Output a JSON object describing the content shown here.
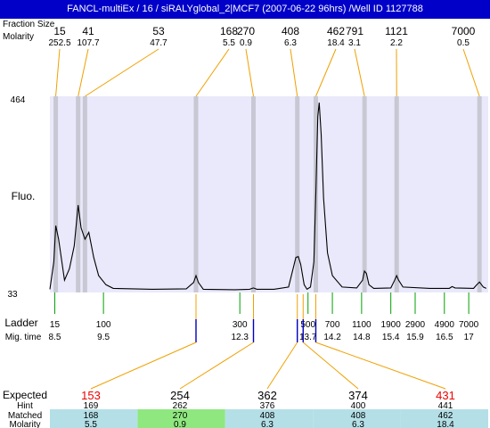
{
  "header": {
    "title": "FANCL-multiEx / 16 / siRALYglobal_2|MCF7 (2007-06-22 96hrs) /Well ID 1127788"
  },
  "labels": {
    "fraction_size": "Fraction Size",
    "molarity": "Molarity",
    "fluo": "Fluo.",
    "ladder": "Ladder",
    "mig_time": "Mig. time",
    "expected": "Expected",
    "hint": "Hint",
    "matched": "Matched",
    "molarity_bottom": "Molarity"
  },
  "fractions": [
    {
      "size": "15",
      "molarity": "252.5"
    },
    {
      "size": "41",
      "molarity": "107.7"
    },
    {
      "size": "53",
      "molarity": "47.7"
    },
    {
      "size": "168",
      "molarity": "5.5"
    },
    {
      "size": "270",
      "molarity": "0.9"
    },
    {
      "size": "408",
      "molarity": "6.3"
    },
    {
      "size": "462",
      "molarity": "18.4"
    },
    {
      "size": "791",
      "molarity": "3.1"
    },
    {
      "size": "1121",
      "molarity": "2.2"
    },
    {
      "size": "7000",
      "molarity": "0.5"
    }
  ],
  "chart_data": {
    "type": "line",
    "title": "",
    "xlabel": "",
    "ylabel": "Fluo.",
    "ylim": [
      33,
      464
    ],
    "y_tick_labels": [
      "464",
      "33"
    ],
    "grid": false,
    "ladder": [
      {
        "size": "15",
        "mig_time": "8.5"
      },
      {
        "size": "100",
        "mig_time": "9.5"
      },
      {
        "size": "300",
        "mig_time": "12.3"
      },
      {
        "size": "500",
        "mig_time": "13.7"
      },
      {
        "size": "700",
        "mig_time": "14.2"
      },
      {
        "size": "1100",
        "mig_time": "14.8"
      },
      {
        "size": "1900",
        "mig_time": "15.4"
      },
      {
        "size": "2900",
        "mig_time": "15.9"
      },
      {
        "size": "4900",
        "mig_time": "16.5"
      },
      {
        "size": "7000",
        "mig_time": "17"
      }
    ],
    "trace": [
      [
        8.4,
        40
      ],
      [
        8.48,
        100
      ],
      [
        8.52,
        180
      ],
      [
        8.58,
        150
      ],
      [
        8.7,
        60
      ],
      [
        8.8,
        85
      ],
      [
        8.9,
        135
      ],
      [
        8.98,
        225
      ],
      [
        9.04,
        175
      ],
      [
        9.12,
        150
      ],
      [
        9.2,
        165
      ],
      [
        9.3,
        110
      ],
      [
        9.4,
        70
      ],
      [
        9.55,
        50
      ],
      [
        9.7,
        42
      ],
      [
        10.5,
        40
      ],
      [
        11.2,
        41
      ],
      [
        11.35,
        55
      ],
      [
        11.4,
        70
      ],
      [
        11.45,
        55
      ],
      [
        11.55,
        40
      ],
      [
        12.2,
        39
      ],
      [
        12.5,
        40
      ],
      [
        12.58,
        43
      ],
      [
        12.65,
        40
      ],
      [
        13.0,
        40
      ],
      [
        13.3,
        45
      ],
      [
        13.45,
        110
      ],
      [
        13.5,
        112
      ],
      [
        13.55,
        95
      ],
      [
        13.62,
        50
      ],
      [
        13.68,
        40
      ],
      [
        13.75,
        45
      ],
      [
        13.82,
        100
      ],
      [
        13.86,
        250
      ],
      [
        13.9,
        420
      ],
      [
        13.93,
        450
      ],
      [
        13.97,
        380
      ],
      [
        14.02,
        240
      ],
      [
        14.1,
        120
      ],
      [
        14.2,
        70
      ],
      [
        14.4,
        45
      ],
      [
        14.7,
        43
      ],
      [
        14.82,
        60
      ],
      [
        14.86,
        80
      ],
      [
        14.9,
        75
      ],
      [
        14.95,
        50
      ],
      [
        15.05,
        42
      ],
      [
        15.4,
        43
      ],
      [
        15.48,
        60
      ],
      [
        15.52,
        70
      ],
      [
        15.56,
        60
      ],
      [
        15.65,
        45
      ],
      [
        16.2,
        42
      ],
      [
        16.6,
        42
      ],
      [
        16.66,
        46
      ],
      [
        16.72,
        43
      ],
      [
        17.1,
        42
      ],
      [
        17.15,
        48
      ],
      [
        17.22,
        56
      ],
      [
        17.3,
        45
      ],
      [
        17.36,
        42
      ]
    ]
  },
  "expected_table": {
    "expected": [
      {
        "value": "153",
        "color": "#ee0000"
      },
      {
        "value": "254",
        "color": "#000000"
      },
      {
        "value": "362",
        "color": "#000000"
      },
      {
        "value": "374",
        "color": "#000000"
      },
      {
        "value": "431",
        "color": "#ee0000"
      }
    ],
    "hint": [
      "169",
      "262",
      "376",
      "400",
      "441"
    ],
    "matched": [
      "168",
      "270",
      "408",
      "408",
      "462"
    ],
    "molarity": [
      "5.5",
      "0.9",
      "6.3",
      "6.3",
      "18.4"
    ],
    "row_colors": [
      "#b4dfe7",
      "#8fe87f",
      "#b4dfe7",
      "#b4dfe7",
      "#b4dfe7"
    ]
  },
  "colors": {
    "header_bg": "#0000c8",
    "plot_bg": "#e9e9fb",
    "band": "#c8c8d4",
    "orange": "#f0a000",
    "green": "#00a000",
    "blue": "#0000c0"
  }
}
